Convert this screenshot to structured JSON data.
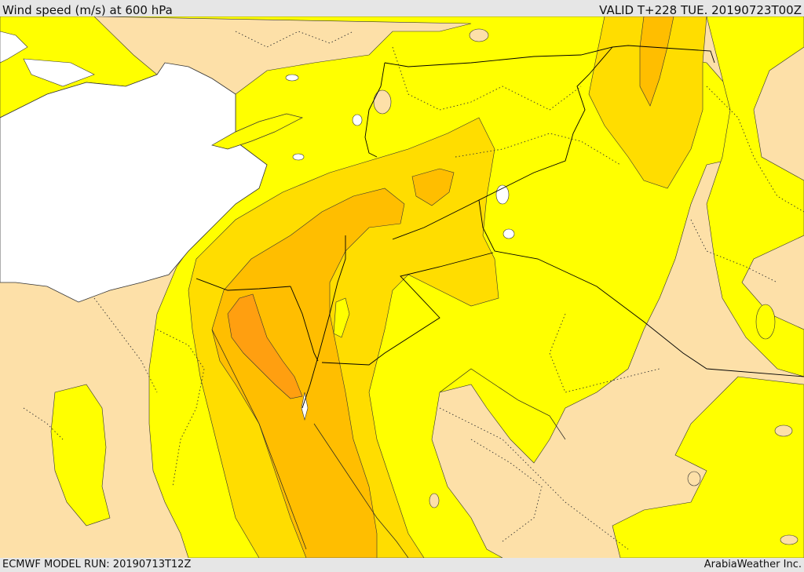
{
  "header": {
    "title": "Wind speed (m/s) at 600 hPa",
    "valid": "VALID T+228 TUE. 20190723T00Z"
  },
  "footer": {
    "model_run": "ECMWF MODEL RUN: 20190713T12Z",
    "credit": "ArabiaWeather Inc."
  },
  "colors": {
    "land_low": "#fde0a8",
    "yellow": "#ffff00",
    "gold": "#ffdd00",
    "amber": "#ffbe00",
    "orange": "#ff9f10",
    "sea": "#ffffff",
    "border": "#000000"
  }
}
